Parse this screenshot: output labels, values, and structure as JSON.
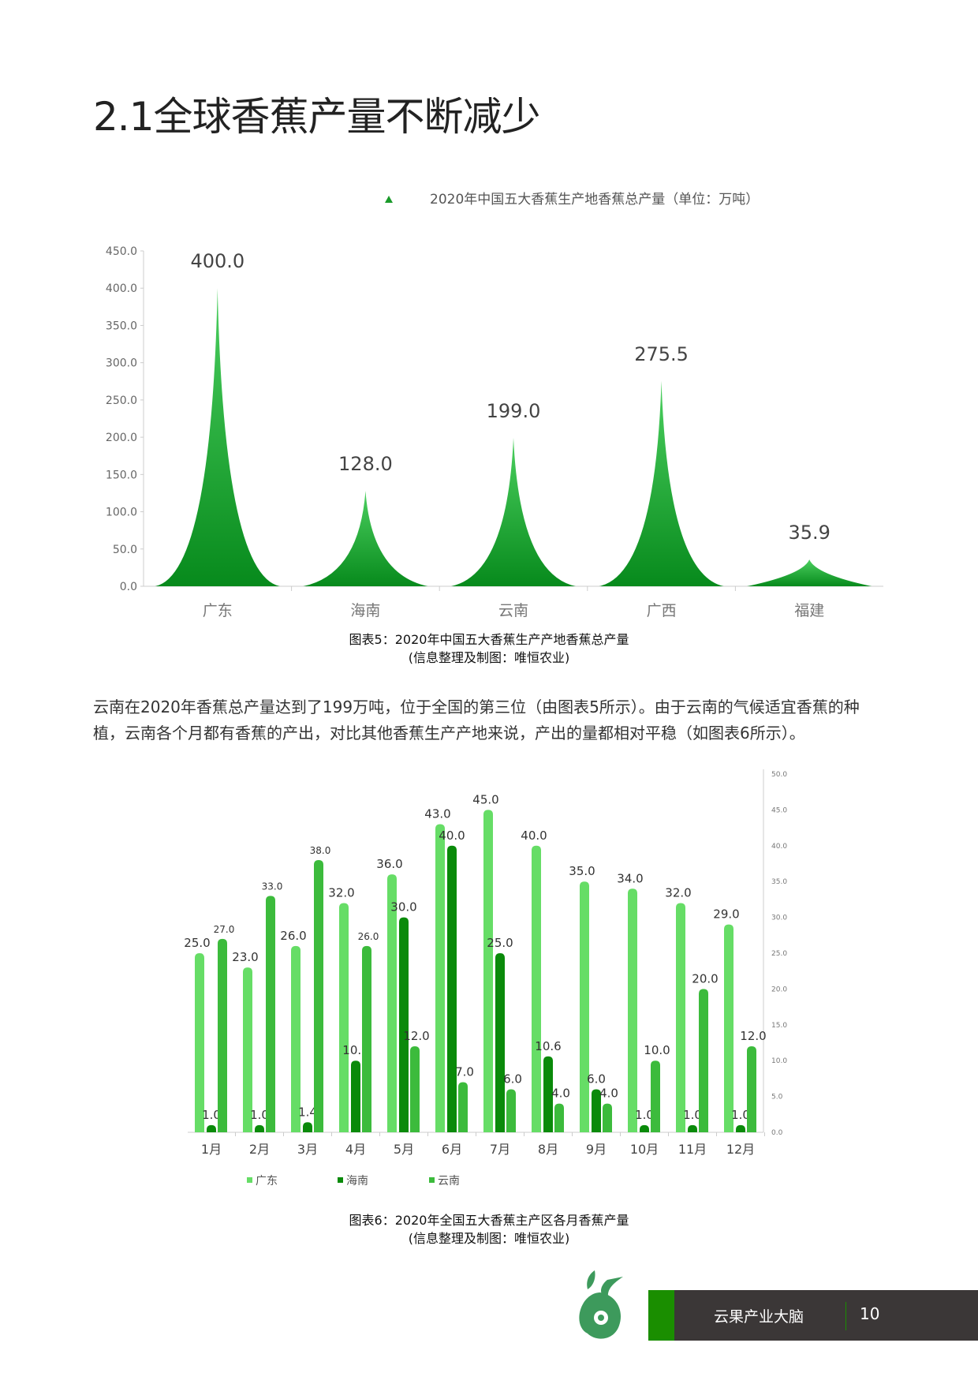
{
  "title": "2.1全球香蕉产量不断减少",
  "chart_data": [
    {
      "type": "area",
      "title": "2020年中国五大香蕉生产地香蕉总产量（单位：万吨）",
      "legend": "2020年中国五大香蕉生产地香蕉总产量（单位：万吨）",
      "categories": [
        "广东",
        "海南",
        "云南",
        "广西",
        "福建"
      ],
      "values": [
        400.0,
        128.0,
        199.0,
        275.5,
        35.9
      ],
      "value_labels": [
        "400.0",
        "128.0",
        "199.0",
        "275.5",
        "35.9"
      ],
      "yticks": [
        "0.0",
        "50.0",
        "100.0",
        "150.0",
        "200.0",
        "250.0",
        "300.0",
        "350.0",
        "400.0",
        "450.0"
      ],
      "ylim": [
        0,
        450
      ],
      "colors": {
        "dark": "#078a1c",
        "light": "#4cd060"
      }
    },
    {
      "type": "bar",
      "categories": [
        "1月",
        "2月",
        "3月",
        "4月",
        "5月",
        "6月",
        "7月",
        "8月",
        "9月",
        "10月",
        "11月",
        "12月"
      ],
      "series": [
        {
          "name": "广东",
          "color": "#66dd66",
          "values": [
            25,
            23,
            26,
            32,
            36,
            43,
            45,
            40,
            35,
            34,
            32,
            29
          ]
        },
        {
          "name": "海南",
          "color": "#0a8a0a",
          "values": [
            1,
            1,
            1.4,
            10,
            30,
            40,
            25,
            10.6,
            6,
            1,
            1,
            1
          ]
        },
        {
          "name": "云南",
          "color": "#3cbb3c",
          "values": [
            27,
            33,
            38,
            26,
            12,
            7,
            6,
            4,
            4,
            10,
            20,
            12
          ]
        }
      ],
      "yticks": [
        "0.0",
        "5.0",
        "10.0",
        "15.0",
        "20.0",
        "25.0",
        "30.0",
        "35.0",
        "40.0",
        "45.0",
        "50.0"
      ],
      "ylim": [
        0,
        50
      ],
      "legend": "bottom"
    }
  ],
  "captions": {
    "fig5_line1": "图表5：2020年中国五大香蕉生产产地香蕉总产量",
    "fig5_line2": "(信息整理及制图：唯恒农业)",
    "fig6_line1": "图表6：2020年全国五大香蕉主产区各月香蕉产量",
    "fig6_line2": "(信息整理及制图：唯恒农业)"
  },
  "paragraph": "云南在2020年香蕉总产量达到了199万吨，位于全国的第三位（由图表5所示）。由于云南的气候适宜香蕉的种植，云南各个月都有香蕉的产出，对比其他香蕉生产产地来说，产出的量都相对平稳（如图表6所示）。",
  "footer": {
    "brand": "云果产业大脑",
    "page": "10",
    "logo_text": "云果"
  }
}
